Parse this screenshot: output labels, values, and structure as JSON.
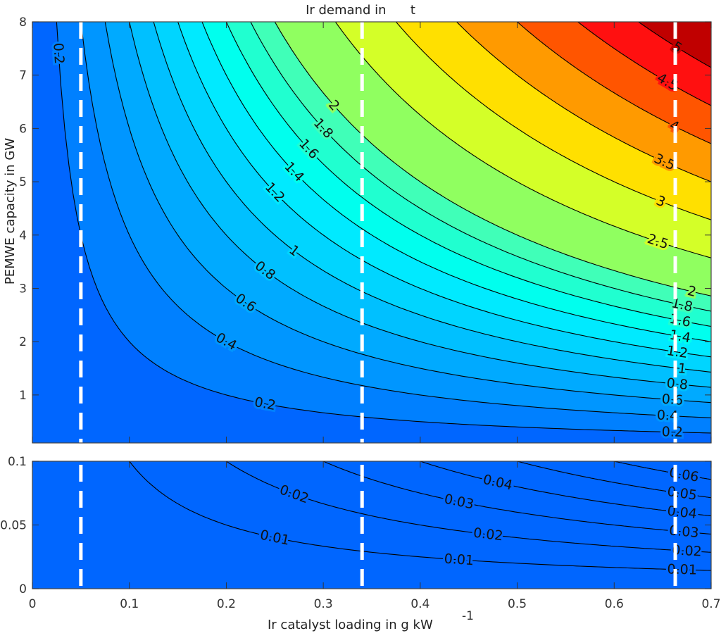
{
  "chart_data": {
    "type": "contour",
    "title": "Ir demand in      t",
    "xlabel": "Ir catalyst loading in g kW",
    "xlabel_superscript": "-1",
    "ylabel": "PEMWE capacity in GW",
    "xlim": [
      0,
      0.7
    ],
    "xticks": [
      "0",
      "0.1",
      "0.2",
      "0.3",
      "0.4",
      "0.5",
      "0.6",
      "0.7"
    ],
    "xtick_values": [
      0,
      0.1,
      0.2,
      0.3,
      0.4,
      0.5,
      0.6,
      0.7
    ],
    "z_expression": "x * y",
    "vertical_dashed_lines_x": [
      0.05,
      0.34,
      0.663
    ],
    "dashed_line_color": "#ffffff",
    "panels": [
      {
        "ylim": [
          0.1,
          8
        ],
        "yticks": [
          "1",
          "2",
          "3",
          "4",
          "5",
          "6",
          "7",
          "8"
        ],
        "ytick_values": [
          1,
          2,
          3,
          4,
          5,
          6,
          7,
          8
        ],
        "levels": [
          0.2,
          0.4,
          0.6,
          0.8,
          1,
          1.2,
          1.4,
          1.6,
          1.8,
          2,
          2.5,
          3,
          3.5,
          4,
          4.5,
          5
        ],
        "level_labels": [
          "0.2",
          "0.4",
          "0.6",
          "0.8",
          "1",
          "1.2",
          "1.4",
          "1.6",
          "1.8",
          "2",
          "2.5",
          "3",
          "3.5",
          "4",
          "4.5",
          "5"
        ],
        "band_colors": [
          "#0066ff",
          "#0080ff",
          "#0096ff",
          "#00aaff",
          "#00c0ff",
          "#00d5ff",
          "#00eaff",
          "#00ffee",
          "#20ffd0",
          "#40ffb8",
          "#90ff60",
          "#d4ff28",
          "#ffe000",
          "#ff9a00",
          "#ff5500",
          "#ff1010",
          "#c00000"
        ]
      },
      {
        "ylim": [
          0,
          0.1
        ],
        "yticks": [
          "0",
          "0.05",
          "0.1"
        ],
        "ytick_values": [
          0,
          0.05,
          0.1
        ],
        "levels": [
          0.01,
          0.02,
          0.03,
          0.04,
          0.05,
          0.06
        ],
        "level_labels": [
          "0.01",
          "0.02",
          "0.03",
          "0.04",
          "0.05",
          "0.06"
        ],
        "band_colors": [
          "#0066ff"
        ]
      }
    ]
  }
}
